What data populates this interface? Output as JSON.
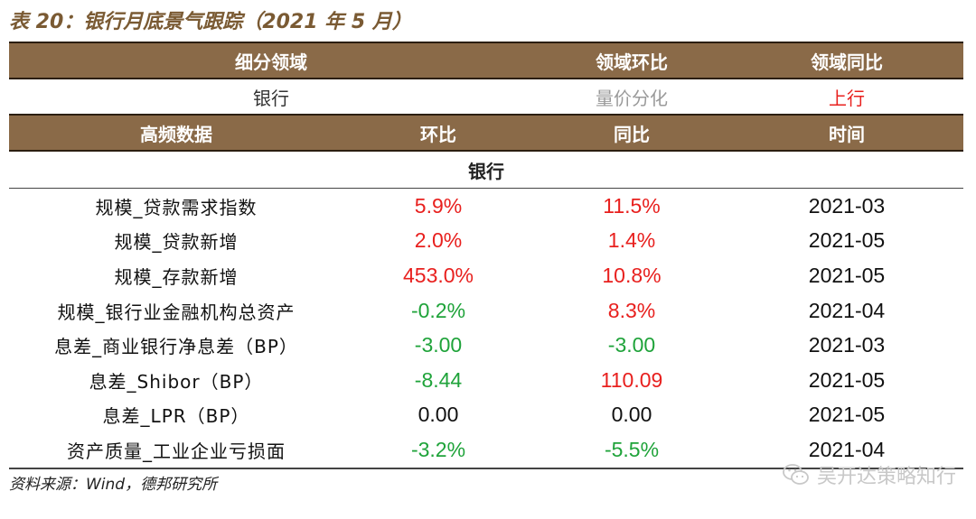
{
  "title": "表 20：银行月底景气跟踪（2021 年 5 月）",
  "top_header": {
    "col1": "细分领域",
    "col2": "领域环比",
    "col3": "领域同比"
  },
  "summary": {
    "sector": "银行",
    "mom": "量价分化",
    "yoy": "上行"
  },
  "data_header": {
    "col1": "高频数据",
    "col2": "环比",
    "col3": "同比",
    "col4": "时间"
  },
  "section": "银行",
  "rows": [
    {
      "name": "规模_贷款需求指数",
      "mom": "5.9%",
      "yoy": "11.5%",
      "date": "2021-03"
    },
    {
      "name": "规模_贷款新增",
      "mom": "2.0%",
      "yoy": "1.4%",
      "date": "2021-05"
    },
    {
      "name": "规模_存款新增",
      "mom": "453.0%",
      "yoy": "10.8%",
      "date": "2021-05"
    },
    {
      "name": "规模_银行业金融机构总资产",
      "mom": "-0.2%",
      "yoy": "8.3%",
      "date": "2021-04"
    },
    {
      "name": "息差_商业银行净息差（BP）",
      "mom": "-3.00",
      "yoy": "-3.00",
      "date": "2021-03"
    },
    {
      "name": "息差_Shibor（BP）",
      "mom": "-8.44",
      "yoy": "110.09",
      "date": "2021-05"
    },
    {
      "name": "息差_LPR（BP）",
      "mom": "0.00",
      "yoy": "0.00",
      "date": "2021-05"
    },
    {
      "name": "资产质量_工业企业亏损面",
      "mom": "-3.2%",
      "yoy": "-5.5%",
      "date": "2021-04"
    }
  ],
  "source": "资料来源：Wind，德邦研究所",
  "watermark": "吴开达策略知行",
  "colors": {
    "header_bg": "#8a6a48",
    "title": "#7a5a33",
    "positive": "#e8201e",
    "negative": "#1fa33a",
    "neutral": "#111111",
    "muted": "#9a9a9a"
  }
}
